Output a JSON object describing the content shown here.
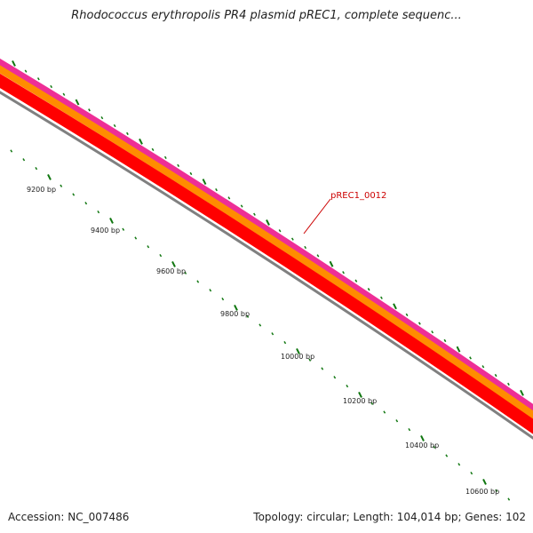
{
  "title": "Rhodococcus erythropolis PR4 plasmid pREC1, complete sequenc...",
  "footer": {
    "accession": "Accession: NC_007486",
    "summary": "Topology: circular; Length: 104,014 bp; Genes: 102"
  },
  "feature_label": "pREC1_0012",
  "scale_labels": [
    "9200 bp",
    "9400 bp",
    "9600 bp",
    "9800 bp",
    "10000 bp",
    "10200 bp",
    "10400 bp",
    "10600 bp"
  ],
  "track_colors": {
    "pink": "#ee2e96",
    "orange": "#ff8c00",
    "red": "#ff0000",
    "gray": "#808080",
    "tick": "#117711",
    "label_red": "#cc0000"
  }
}
